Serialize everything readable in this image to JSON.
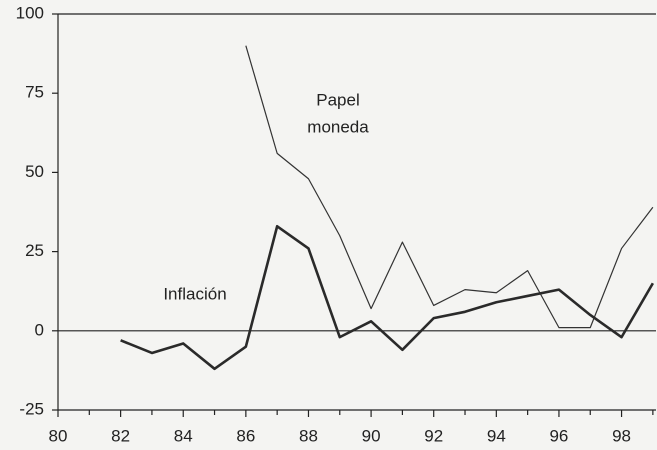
{
  "chart_data": {
    "type": "line",
    "annotations": [
      "Papel",
      "moneda",
      "Inflación"
    ],
    "series": [
      {
        "name": "Papel moneda",
        "color": "#333333",
        "x": [
          86,
          87,
          88,
          89,
          90,
          91,
          92,
          93,
          94,
          95,
          96,
          97,
          98,
          99
        ],
        "values": [
          90,
          56,
          48,
          30,
          7,
          28,
          8,
          13,
          12,
          19,
          1,
          1,
          26,
          39
        ]
      },
      {
        "name": "Inflación",
        "color": "#2a2a2a",
        "x": [
          82,
          83,
          84,
          85,
          86,
          87,
          88,
          89,
          90,
          91,
          92,
          93,
          94,
          95,
          96,
          97,
          98,
          99
        ],
        "values": [
          -3,
          -7,
          -4,
          -12,
          -5,
          33,
          26,
          -2,
          3,
          -6,
          4,
          6,
          9,
          11,
          13,
          5,
          -2,
          15
        ]
      }
    ],
    "xlim": [
      80,
      99.1
    ],
    "ylim": [
      -25,
      100
    ],
    "xticks": [
      80,
      82,
      84,
      86,
      88,
      90,
      92,
      94,
      96,
      98
    ],
    "xminorticks": [
      81,
      83,
      85,
      87,
      89,
      91,
      93,
      95,
      97,
      99
    ],
    "yticks": [
      -25,
      0,
      25,
      50,
      75,
      100
    ]
  }
}
